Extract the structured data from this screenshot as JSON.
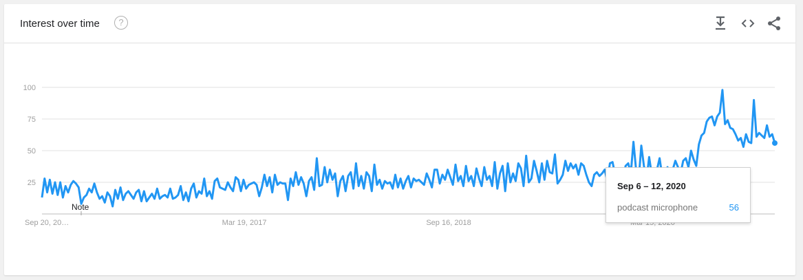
{
  "header": {
    "title": "Interest over time",
    "help_icon": "question-circle-icon",
    "actions": [
      {
        "name": "download",
        "icon": "download-icon"
      },
      {
        "name": "embed",
        "icon": "code-embed-icon"
      },
      {
        "name": "share",
        "icon": "share-icon"
      }
    ]
  },
  "tooltip": {
    "date": "Sep 6 – 12, 2020",
    "series": "podcast microphone",
    "value": "56"
  },
  "colors": {
    "line": "#2196f3",
    "grid": "#e0e0e0",
    "tick": "#9e9e9e"
  },
  "chart_data": {
    "type": "line",
    "title": "",
    "xlabel": "",
    "ylabel": "",
    "ylim": [
      0,
      100
    ],
    "yticks": [
      25,
      50,
      75,
      100
    ],
    "xtick_labels": [
      "Sep 20, 20…",
      "Mar 19, 2017",
      "Sep 16, 2018",
      "Mar 15, 2020"
    ],
    "annotation": "Note",
    "grid": true,
    "series": [
      {
        "name": "podcast microphone",
        "values": [
          13,
          28,
          17,
          27,
          16,
          25,
          15,
          25,
          13,
          22,
          17,
          23,
          26,
          24,
          21,
          8,
          13,
          15,
          20,
          17,
          24,
          17,
          12,
          14,
          9,
          17,
          14,
          6,
          19,
          12,
          21,
          11,
          16,
          18,
          15,
          12,
          17,
          19,
          10,
          18,
          10,
          13,
          16,
          12,
          20,
          12,
          14,
          15,
          13,
          20,
          12,
          13,
          15,
          22,
          11,
          17,
          10,
          20,
          24,
          13,
          18,
          16,
          28,
          14,
          18,
          12,
          26,
          28,
          21,
          20,
          19,
          25,
          21,
          18,
          29,
          27,
          18,
          27,
          20,
          23,
          24,
          25,
          23,
          14,
          21,
          31,
          22,
          29,
          17,
          31,
          23,
          25,
          24,
          24,
          11,
          28,
          22,
          33,
          23,
          29,
          24,
          14,
          26,
          29,
          19,
          44,
          22,
          23,
          37,
          25,
          35,
          27,
          32,
          14,
          26,
          30,
          18,
          30,
          33,
          20,
          40,
          22,
          30,
          20,
          33,
          30,
          18,
          39,
          23,
          27,
          20,
          26,
          24,
          25,
          20,
          31,
          21,
          28,
          20,
          26,
          30,
          21,
          28,
          26,
          27,
          25,
          23,
          32,
          27,
          21,
          35,
          35,
          24,
          31,
          27,
          35,
          29,
          23,
          39,
          26,
          30,
          22,
          38,
          26,
          30,
          22,
          36,
          28,
          22,
          37,
          27,
          30,
          22,
          41,
          20,
          32,
          38,
          18,
          40,
          25,
          32,
          26,
          40,
          36,
          22,
          46,
          25,
          28,
          42,
          34,
          25,
          40,
          27,
          42,
          33,
          32,
          47,
          24,
          27,
          31,
          42,
          34,
          40,
          36,
          39,
          31,
          40,
          38,
          31,
          25,
          22,
          31,
          33,
          30,
          32,
          35,
          26,
          40,
          41,
          31,
          34,
          36,
          28,
          38,
          40,
          32,
          57,
          35,
          27,
          54,
          38,
          27,
          45,
          31,
          33,
          35,
          44,
          30,
          29,
          37,
          26,
          35,
          42,
          37,
          32,
          42,
          44,
          37,
          50,
          43,
          38,
          55,
          62,
          64,
          73,
          76,
          77,
          70,
          77,
          80,
          98,
          71,
          74,
          68,
          67,
          63,
          58,
          60,
          53,
          63,
          57,
          56,
          90,
          61,
          64,
          62,
          60,
          70,
          61,
          63,
          56
        ]
      }
    ]
  }
}
